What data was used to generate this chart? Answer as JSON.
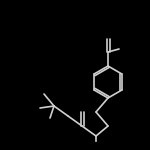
{
  "background": "#000000",
  "line_color": "#d0d0d0",
  "line_width": 1.2,
  "figsize": [
    1.5,
    1.5
  ],
  "dpi": 100
}
